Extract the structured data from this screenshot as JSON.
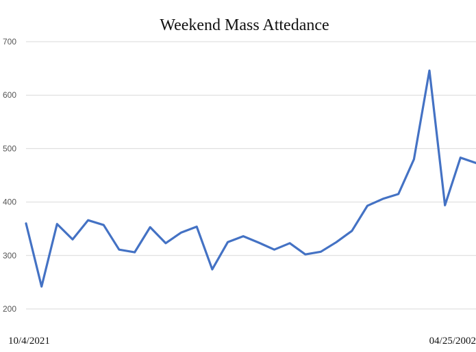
{
  "chart_data": {
    "type": "line",
    "title": "Weekend Mass Attedance",
    "xlabel": "",
    "ylabel": "",
    "ylim": [
      200,
      700
    ],
    "y_ticks": [
      200,
      300,
      400,
      500,
      600,
      700
    ],
    "y_tick_labels": [
      "200",
      "300",
      "400",
      "500",
      "600",
      "700"
    ],
    "x_tick_labels": [
      "10/4/2021",
      "04/25/2002"
    ],
    "grid": true,
    "legend": "none",
    "colors": {
      "line": "#4472c4",
      "grid": "#d9d9d9"
    },
    "series": [
      {
        "values": [
          360,
          242,
          359,
          330,
          366,
          357,
          311,
          306,
          353,
          323,
          343,
          354,
          274,
          325,
          336,
          324,
          311,
          323,
          302,
          307,
          325,
          346,
          393,
          406,
          415,
          480,
          646,
          394,
          483,
          473
        ]
      }
    ]
  }
}
